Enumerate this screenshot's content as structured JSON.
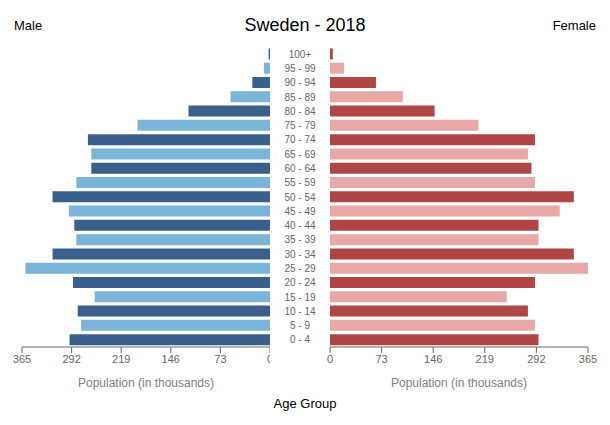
{
  "chart_data": {
    "type": "bar",
    "orientation": "horizontal",
    "title": "Sweden - 2018",
    "xlabel": "Population (in thousands)",
    "ylabel": "Age Group",
    "categories": [
      "0 - 4",
      "5 - 9",
      "10 - 14",
      "15 - 19",
      "20 - 24",
      "25 - 29",
      "30 - 34",
      "35 - 39",
      "40 - 44",
      "45 - 49",
      "50 - 54",
      "55 - 59",
      "60 - 64",
      "65 - 69",
      "70 - 74",
      "75 - 79",
      "80 - 84",
      "85 - 89",
      "90 - 94",
      "95 - 99",
      "100+"
    ],
    "series": [
      {
        "name": "Male",
        "colors": [
          "#3a5f8a",
          "#7ab4d8",
          "#3a5f8a",
          "#7ab4d8",
          "#3a5f8a",
          "#7ab4d8",
          "#3a5f8a",
          "#7ab4d8",
          "#3a5f8a",
          "#7ab4d8",
          "#3a5f8a",
          "#7ab4d8",
          "#3a5f8a",
          "#7ab4d8",
          "#3a5f8a",
          "#7ab4d8",
          "#3a5f8a",
          "#7ab4d8",
          "#3a5f8a",
          "#7ab4d8",
          "#3a5f8a"
        ],
        "values": [
          295,
          278,
          283,
          258,
          290,
          360,
          320,
          285,
          288,
          296,
          320,
          285,
          263,
          263,
          268,
          195,
          120,
          58,
          26,
          9,
          2
        ]
      },
      {
        "name": "Female",
        "colors": [
          "#b04545",
          "#e8a8a8",
          "#b04545",
          "#e8a8a8",
          "#b04545",
          "#e8a8a8",
          "#b04545",
          "#e8a8a8",
          "#b04545",
          "#e8a8a8",
          "#b04545",
          "#e8a8a8",
          "#b04545",
          "#e8a8a8",
          "#b04545",
          "#e8a8a8",
          "#b04545",
          "#e8a8a8",
          "#b04545",
          "#e8a8a8",
          "#b04545"
        ],
        "values": [
          295,
          290,
          280,
          250,
          290,
          365,
          345,
          295,
          295,
          325,
          345,
          290,
          285,
          280,
          290,
          210,
          148,
          103,
          65,
          20,
          4
        ]
      }
    ],
    "xlim": [
      0,
      365
    ],
    "xticks": [
      0,
      73,
      146,
      219,
      292,
      365
    ],
    "grid": false
  }
}
